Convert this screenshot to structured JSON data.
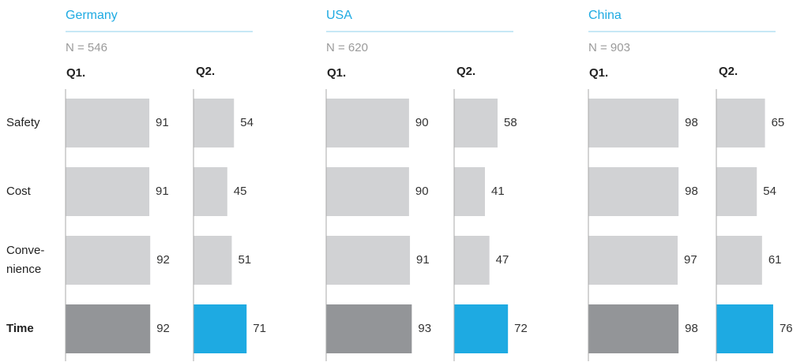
{
  "chart_data": {
    "type": "bar",
    "orientation": "horizontal",
    "categories": [
      "Safety",
      "Cost",
      "Conve-\nnience",
      "Time"
    ],
    "xlim": [
      0,
      100
    ],
    "panels": [
      {
        "title": "Germany",
        "subtitle": "N = 546",
        "series": [
          {
            "name": "Q1.",
            "colors": [
              "#d1d2d4",
              "#d1d2d4",
              "#d1d2d4",
              "#939598"
            ],
            "values": [
              91,
              91,
              92,
              92
            ]
          },
          {
            "name": "Q2.",
            "colors": [
              "#d1d2d4",
              "#d1d2d4",
              "#d1d2d4",
              "#1eaae2"
            ],
            "values": [
              54,
              45,
              51,
              71
            ]
          }
        ]
      },
      {
        "title": "USA",
        "subtitle": "N = 620",
        "series": [
          {
            "name": "Q1.",
            "colors": [
              "#d1d2d4",
              "#d1d2d4",
              "#d1d2d4",
              "#939598"
            ],
            "values": [
              90,
              90,
              91,
              93
            ]
          },
          {
            "name": "Q2.",
            "colors": [
              "#d1d2d4",
              "#d1d2d4",
              "#d1d2d4",
              "#1eaae2"
            ],
            "values": [
              58,
              41,
              47,
              72
            ]
          }
        ]
      },
      {
        "title": "China",
        "subtitle": "N = 903",
        "series": [
          {
            "name": "Q1.",
            "colors": [
              "#d1d2d4",
              "#d1d2d4",
              "#d1d2d4",
              "#939598"
            ],
            "values": [
              98,
              98,
              97,
              98
            ]
          },
          {
            "name": "Q2.",
            "colors": [
              "#d1d2d4",
              "#d1d2d4",
              "#d1d2d4",
              "#1eaae2"
            ],
            "values": [
              65,
              54,
              61,
              76
            ]
          }
        ]
      }
    ]
  }
}
